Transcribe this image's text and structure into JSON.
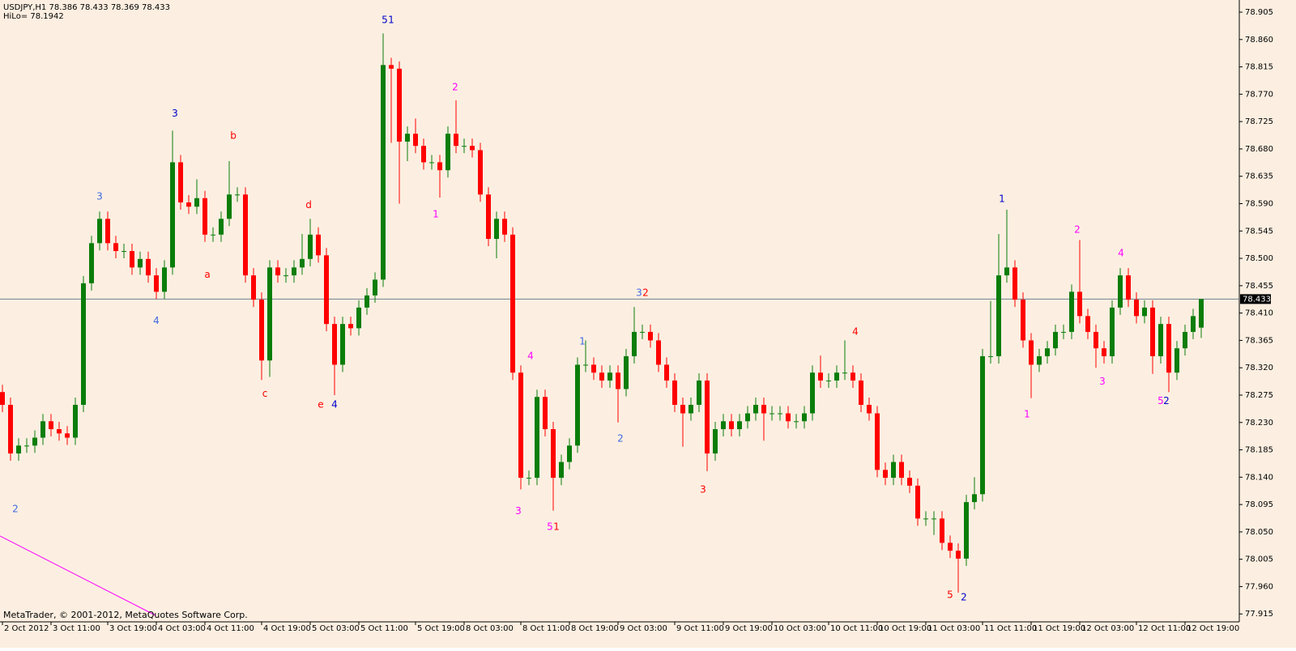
{
  "chart_data": {
    "type": "candlestick",
    "title": "USDJPY,H1  78.386 78.433 78.369 78.433",
    "subtitle": "HiLo= 78.1942",
    "footer": "MetaTrader, © 2001-2012, MetaQuotes Software Corp.",
    "up_color": "#0a7d0a",
    "down_color": "#ff0000",
    "current_price": 78.433,
    "current_price_label": "78.433",
    "ylim": [
      77.902,
      78.925
    ],
    "yticks": [
      {
        "value": 78.905,
        "label": "78.905"
      },
      {
        "value": 78.86,
        "label": "78.860"
      },
      {
        "value": 78.815,
        "label": "78.815"
      },
      {
        "value": 78.77,
        "label": "78.770"
      },
      {
        "value": 78.725,
        "label": "78.725"
      },
      {
        "value": 78.68,
        "label": "78.680"
      },
      {
        "value": 78.635,
        "label": "78.635"
      },
      {
        "value": 78.59,
        "label": "78.590"
      },
      {
        "value": 78.545,
        "label": "78.545"
      },
      {
        "value": 78.5,
        "label": "78.500"
      },
      {
        "value": 78.455,
        "label": "78.455"
      },
      {
        "value": 78.41,
        "label": "78.410"
      },
      {
        "value": 78.365,
        "label": "78.365"
      },
      {
        "value": 78.32,
        "label": "78.320"
      },
      {
        "value": 78.275,
        "label": "78.275"
      },
      {
        "value": 78.23,
        "label": "78.230"
      },
      {
        "value": 78.185,
        "label": "78.185"
      },
      {
        "value": 78.14,
        "label": "78.140"
      },
      {
        "value": 78.095,
        "label": "78.095"
      },
      {
        "value": 78.05,
        "label": "78.050"
      },
      {
        "value": 78.005,
        "label": "78.005"
      },
      {
        "value": 77.96,
        "label": "77.960"
      },
      {
        "value": 77.915,
        "label": "77.915"
      }
    ],
    "categories": [
      "2 Oct 2012",
      null,
      null,
      null,
      null,
      null,
      "3 Oct 11:00",
      null,
      null,
      null,
      null,
      null,
      null,
      "3 Oct 19:00",
      null,
      null,
      null,
      null,
      null,
      "4 Oct 03:00",
      null,
      null,
      null,
      null,
      null,
      "4 Oct 11:00",
      null,
      null,
      null,
      null,
      null,
      null,
      "4 Oct 19:00",
      null,
      null,
      null,
      null,
      null,
      "5 Oct 03:00",
      null,
      null,
      null,
      null,
      null,
      "5 Oct 11:00",
      null,
      null,
      null,
      null,
      null,
      null,
      "5 Oct 19:00",
      null,
      null,
      null,
      null,
      null,
      "8 Oct 03:00",
      null,
      null,
      null,
      null,
      null,
      null,
      "8 Oct 11:00",
      null,
      null,
      null,
      null,
      null,
      "8 Oct 19:00",
      null,
      null,
      null,
      null,
      null,
      "9 Oct 03:00",
      null,
      null,
      null,
      null,
      null,
      null,
      "9 Oct 11:00",
      null,
      null,
      null,
      null,
      null,
      "9 Oct 19:00",
      null,
      null,
      null,
      null,
      null,
      "10 Oct 03:00",
      null,
      null,
      null,
      null,
      null,
      null,
      "10 Oct 11:00",
      null,
      null,
      null,
      null,
      null,
      "10 Oct 19:00",
      null,
      null,
      null,
      null,
      null,
      "11 Oct 03:00",
      null,
      null,
      null,
      null,
      null,
      null,
      "11 Oct 11:00",
      null,
      null,
      null,
      null,
      null,
      "11 Oct 19:00",
      null,
      null,
      null,
      null,
      null,
      "12 Oct 03:00",
      null,
      null,
      null,
      null,
      null,
      null,
      "12 Oct 11:00",
      null,
      null,
      null,
      null,
      null,
      "12 Oct 19:00",
      null,
      null
    ],
    "open": [
      78.28,
      78.259,
      78.179,
      78.192,
      78.192,
      78.205,
      78.232,
      78.219,
      78.212,
      78.205,
      78.259,
      78.459,
      78.525,
      78.565,
      78.525,
      78.512,
      78.512,
      78.485,
      78.499,
      78.472,
      78.445,
      78.485,
      78.658,
      78.592,
      78.585,
      78.599,
      78.539,
      78.539,
      78.565,
      78.605,
      78.605,
      78.472,
      78.432,
      78.332,
      78.485,
      78.472,
      78.472,
      78.485,
      78.499,
      78.539,
      78.505,
      78.392,
      78.325,
      78.392,
      78.385,
      78.419,
      78.439,
      78.465,
      78.818,
      78.812,
      78.692,
      78.705,
      78.685,
      78.658,
      78.658,
      78.645,
      78.705,
      78.685,
      78.685,
      78.678,
      78.605,
      78.532,
      78.565,
      78.539,
      78.312,
      78.139,
      78.139,
      78.272,
      78.219,
      78.139,
      78.165,
      78.192,
      78.325,
      78.325,
      78.312,
      78.299,
      78.312,
      78.285,
      78.339,
      78.379,
      78.379,
      78.365,
      78.325,
      78.299,
      78.259,
      78.245,
      78.259,
      78.299,
      78.179,
      78.219,
      78.232,
      78.219,
      78.232,
      78.245,
      78.259,
      78.245,
      78.245,
      78.245,
      78.232,
      78.232,
      78.245,
      78.312,
      78.299,
      78.299,
      78.312,
      78.312,
      78.299,
      78.259,
      78.245,
      78.152,
      78.139,
      78.165,
      78.139,
      78.126,
      78.072,
      78.072,
      78.072,
      78.032,
      78.019,
      78.006,
      78.099,
      78.112,
      78.339,
      78.339,
      78.472,
      78.485,
      78.432,
      78.365,
      78.325,
      78.339,
      78.352,
      78.379,
      78.379,
      78.445,
      78.405,
      78.379,
      78.352,
      78.339,
      78.419,
      78.472,
      78.432,
      78.405,
      78.419,
      78.339,
      78.392,
      78.312,
      78.352,
      78.379,
      78.386
    ],
    "high": [
      78.292,
      78.271,
      78.204,
      78.204,
      78.217,
      78.244,
      78.244,
      78.231,
      78.224,
      78.271,
      78.471,
      78.537,
      78.577,
      78.577,
      78.537,
      78.524,
      78.524,
      78.511,
      78.511,
      78.484,
      78.497,
      78.71,
      78.67,
      78.604,
      78.63,
      78.611,
      78.551,
      78.577,
      78.66,
      78.617,
      78.617,
      78.484,
      78.444,
      78.497,
      78.497,
      78.484,
      78.497,
      78.54,
      78.565,
      78.551,
      78.517,
      78.404,
      78.404,
      78.404,
      78.431,
      78.451,
      78.477,
      78.87,
      78.83,
      78.824,
      78.717,
      78.73,
      78.697,
      78.67,
      78.67,
      78.717,
      78.76,
      78.697,
      78.697,
      78.69,
      78.617,
      78.577,
      78.577,
      78.551,
      78.324,
      78.151,
      78.284,
      78.284,
      78.231,
      78.177,
      78.204,
      78.337,
      78.365,
      78.337,
      78.324,
      78.324,
      78.324,
      78.351,
      78.42,
      78.391,
      78.391,
      78.377,
      78.337,
      78.311,
      78.271,
      78.271,
      78.311,
      78.311,
      78.231,
      78.244,
      78.244,
      78.244,
      78.257,
      78.271,
      78.271,
      78.257,
      78.257,
      78.257,
      78.244,
      78.257,
      78.324,
      78.34,
      78.311,
      78.324,
      78.365,
      78.324,
      78.311,
      78.271,
      78.257,
      78.164,
      78.177,
      78.177,
      78.151,
      78.138,
      78.084,
      78.084,
      78.084,
      78.044,
      78.031,
      78.111,
      78.14,
      78.351,
      78.43,
      78.54,
      78.58,
      78.497,
      78.444,
      78.377,
      78.351,
      78.364,
      78.391,
      78.391,
      78.457,
      78.53,
      78.417,
      78.391,
      78.364,
      78.431,
      78.484,
      78.484,
      78.444,
      78.431,
      78.431,
      78.404,
      78.404,
      78.364,
      78.391,
      78.417,
      78.433
    ],
    "low": [
      78.247,
      78.167,
      78.167,
      78.18,
      78.18,
      78.193,
      78.207,
      78.2,
      78.193,
      78.193,
      78.247,
      78.447,
      78.513,
      78.513,
      78.5,
      78.5,
      78.473,
      78.473,
      78.46,
      78.433,
      78.433,
      78.473,
      78.58,
      78.573,
      78.573,
      78.527,
      78.527,
      78.527,
      78.553,
      78.593,
      78.46,
      78.42,
      78.3,
      78.305,
      78.46,
      78.46,
      78.46,
      78.473,
      78.487,
      78.493,
      78.38,
      78.275,
      78.313,
      78.373,
      78.373,
      78.407,
      78.427,
      78.453,
      78.69,
      78.59,
      78.66,
      78.673,
      78.646,
      78.646,
      78.6,
      78.633,
      78.673,
      78.673,
      78.666,
      78.593,
      78.52,
      78.5,
      78.527,
      78.3,
      78.12,
      78.127,
      78.127,
      78.207,
      78.085,
      78.127,
      78.153,
      78.18,
      78.313,
      78.3,
      78.287,
      78.287,
      78.23,
      78.273,
      78.327,
      78.367,
      78.353,
      78.313,
      78.287,
      78.247,
      78.19,
      78.233,
      78.247,
      78.15,
      78.167,
      78.207,
      78.207,
      78.207,
      78.22,
      78.233,
      78.2,
      78.233,
      78.233,
      78.22,
      78.22,
      78.22,
      78.233,
      78.287,
      78.287,
      78.287,
      78.3,
      78.287,
      78.247,
      78.233,
      78.14,
      78.127,
      78.127,
      78.127,
      78.114,
      78.06,
      78.06,
      78.045,
      78.02,
      78.007,
      77.95,
      77.994,
      78.087,
      78.1,
      78.327,
      78.327,
      78.46,
      78.42,
      78.353,
      78.27,
      78.313,
      78.327,
      78.34,
      78.367,
      78.367,
      78.393,
      78.367,
      78.32,
      78.327,
      78.327,
      78.407,
      78.42,
      78.393,
      78.393,
      78.31,
      78.327,
      78.28,
      78.3,
      78.34,
      78.367,
      78.369
    ],
    "close": [
      78.259,
      78.179,
      78.192,
      78.192,
      78.205,
      78.232,
      78.219,
      78.212,
      78.205,
      78.259,
      78.459,
      78.525,
      78.565,
      78.525,
      78.512,
      78.512,
      78.485,
      78.499,
      78.472,
      78.445,
      78.485,
      78.658,
      78.592,
      78.585,
      78.599,
      78.539,
      78.539,
      78.565,
      78.605,
      78.605,
      78.472,
      78.432,
      78.332,
      78.485,
      78.472,
      78.472,
      78.485,
      78.499,
      78.539,
      78.505,
      78.392,
      78.325,
      78.392,
      78.385,
      78.419,
      78.439,
      78.465,
      78.818,
      78.812,
      78.692,
      78.705,
      78.685,
      78.658,
      78.658,
      78.645,
      78.705,
      78.685,
      78.685,
      78.678,
      78.605,
      78.532,
      78.565,
      78.539,
      78.312,
      78.139,
      78.139,
      78.272,
      78.219,
      78.139,
      78.165,
      78.192,
      78.325,
      78.325,
      78.312,
      78.299,
      78.312,
      78.285,
      78.339,
      78.379,
      78.379,
      78.365,
      78.325,
      78.299,
      78.259,
      78.245,
      78.259,
      78.299,
      78.179,
      78.219,
      78.232,
      78.219,
      78.232,
      78.245,
      78.259,
      78.245,
      78.245,
      78.245,
      78.232,
      78.232,
      78.245,
      78.312,
      78.299,
      78.299,
      78.312,
      78.312,
      78.299,
      78.259,
      78.245,
      78.152,
      78.139,
      78.165,
      78.139,
      78.126,
      78.072,
      78.072,
      78.072,
      78.032,
      78.019,
      78.006,
      78.099,
      78.112,
      78.339,
      78.339,
      78.472,
      78.485,
      78.432,
      78.365,
      78.325,
      78.339,
      78.352,
      78.379,
      78.379,
      78.445,
      78.405,
      78.379,
      78.352,
      78.339,
      78.419,
      78.472,
      78.432,
      78.405,
      78.419,
      78.339,
      78.392,
      78.312,
      78.352,
      78.379,
      78.405,
      78.433
    ],
    "annotations": [
      {
        "text": "5",
        "x": 47.2,
        "y": 78.892,
        "color": "#0000cc"
      },
      {
        "text": "1",
        "x": 48.0,
        "y": 78.892,
        "color": "#0000cc"
      },
      {
        "text": "3",
        "x": 21.3,
        "y": 78.738,
        "color": "#0000cc"
      },
      {
        "text": "b",
        "x": 28.5,
        "y": 78.701,
        "color": "#ff0000"
      },
      {
        "text": "3",
        "x": 12,
        "y": 78.601,
        "color": "#4169e1"
      },
      {
        "text": "d",
        "x": 37.8,
        "y": 78.587,
        "color": "#ff0000"
      },
      {
        "text": "a",
        "x": 25.3,
        "y": 78.473,
        "color": "#ff0000"
      },
      {
        "text": "4",
        "x": 19,
        "y": 78.397,
        "color": "#4169e1"
      },
      {
        "text": "c",
        "x": 32.4,
        "y": 78.277,
        "color": "#ff0000"
      },
      {
        "text": "e",
        "x": 39.3,
        "y": 78.259,
        "color": "#ff0000"
      },
      {
        "text": "4",
        "x": 41,
        "y": 78.259,
        "color": "#0000cc"
      },
      {
        "text": "2",
        "x": 55.9,
        "y": 78.781,
        "color": "#ff00ff"
      },
      {
        "text": "1",
        "x": 53.5,
        "y": 78.572,
        "color": "#ff00ff"
      },
      {
        "text": "3",
        "x": 78.6,
        "y": 78.443,
        "color": "#4169e1"
      },
      {
        "text": "2",
        "x": 79.4,
        "y": 78.443,
        "color": "#ff0000"
      },
      {
        "text": "1",
        "x": 71.6,
        "y": 78.363,
        "color": "#4169e1"
      },
      {
        "text": "4",
        "x": 65.2,
        "y": 78.339,
        "color": "#ff00ff"
      },
      {
        "text": "2",
        "x": 76.3,
        "y": 78.203,
        "color": "#4169e1"
      },
      {
        "text": "3",
        "x": 63.7,
        "y": 78.084,
        "color": "#ff00ff"
      },
      {
        "text": "5",
        "x": 67.6,
        "y": 78.058,
        "color": "#ff00ff"
      },
      {
        "text": "1",
        "x": 68.4,
        "y": 78.058,
        "color": "#ff0000"
      },
      {
        "text": "3",
        "x": 86.5,
        "y": 78.119,
        "color": "#ff0000"
      },
      {
        "text": "4",
        "x": 105.3,
        "y": 78.379,
        "color": "#ff0000"
      },
      {
        "text": "5",
        "x": 117,
        "y": 77.946,
        "color": "#ff0000"
      },
      {
        "text": "2",
        "x": 118.7,
        "y": 77.942,
        "color": "#0000cc"
      },
      {
        "text": "1",
        "x": 123.4,
        "y": 78.597,
        "color": "#0000cc"
      },
      {
        "text": "1",
        "x": 126.5,
        "y": 78.243,
        "color": "#ff00ff"
      },
      {
        "text": "2",
        "x": 132.7,
        "y": 78.547,
        "color": "#ff00ff"
      },
      {
        "text": "3",
        "x": 135.8,
        "y": 78.297,
        "color": "#ff00ff"
      },
      {
        "text": "4",
        "x": 138.1,
        "y": 78.508,
        "color": "#ff00ff"
      },
      {
        "text": "5",
        "x": 143,
        "y": 78.265,
        "color": "#ff00ff"
      },
      {
        "text": "2",
        "x": 143.7,
        "y": 78.265,
        "color": "#0000cc"
      },
      {
        "text": "2",
        "x": 1.6,
        "y": 78.087,
        "color": "#4169e1"
      }
    ]
  }
}
